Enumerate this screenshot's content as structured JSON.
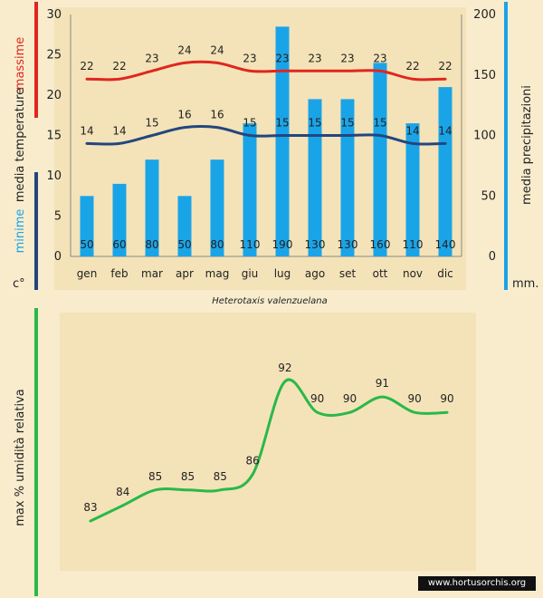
{
  "caption": "Heterotaxis valenzuelana",
  "credit": "www.hortusorchis.org",
  "colors": {
    "max_temp": "#e0261f",
    "min_temp": "#23467f",
    "precip": "#1aa4e8",
    "humidity": "#2ab84a",
    "background": "#f8eccd",
    "panel": "#f4e3b8"
  },
  "labels": {
    "max": "massime",
    "temp": "media  temperature",
    "min": "minime",
    "deg": "c°",
    "precip": "media  precipitazioni",
    "mm": "mm.",
    "humidity": "max  %  umidità relativa"
  },
  "chart_data": [
    {
      "type": "bar+line",
      "title": "Heterotaxis valenzuelana",
      "categories": [
        "gen",
        "feb",
        "mar",
        "apr",
        "mag",
        "giu",
        "lug",
        "ago",
        "set",
        "ott",
        "nov",
        "dic"
      ],
      "series": [
        {
          "name": "massime",
          "kind": "line",
          "axis": "left",
          "values": [
            22,
            22,
            23,
            24,
            24,
            23,
            23,
            23,
            23,
            23,
            22,
            22
          ]
        },
        {
          "name": "minime",
          "kind": "line",
          "axis": "left",
          "values": [
            14,
            14,
            15,
            16,
            16,
            15,
            15,
            15,
            15,
            15,
            14,
            14
          ]
        },
        {
          "name": "media precipitazioni",
          "kind": "bar",
          "axis": "right",
          "values": [
            50,
            60,
            80,
            50,
            80,
            110,
            190,
            130,
            130,
            160,
            110,
            140
          ]
        }
      ],
      "ylim_left": [
        0,
        30
      ],
      "yticks_left": [
        0,
        5,
        10,
        15,
        20,
        25,
        30
      ],
      "ylim_right": [
        0,
        200
      ],
      "yticks_right": [
        0,
        50,
        100,
        150,
        200
      ],
      "ylabel_left": "media temperature c°",
      "ylabel_right": "media precipitazioni mm."
    },
    {
      "type": "line",
      "categories": [
        "gen",
        "feb",
        "mar",
        "apr",
        "mag",
        "giu",
        "lug",
        "ago",
        "set",
        "ott",
        "nov",
        "dic"
      ],
      "values": [
        83,
        84,
        85,
        85,
        85,
        86,
        92,
        90,
        90,
        91,
        90,
        90
      ],
      "ylabel": "max % umidità relativa",
      "ylim": [
        80,
        95
      ]
    }
  ]
}
